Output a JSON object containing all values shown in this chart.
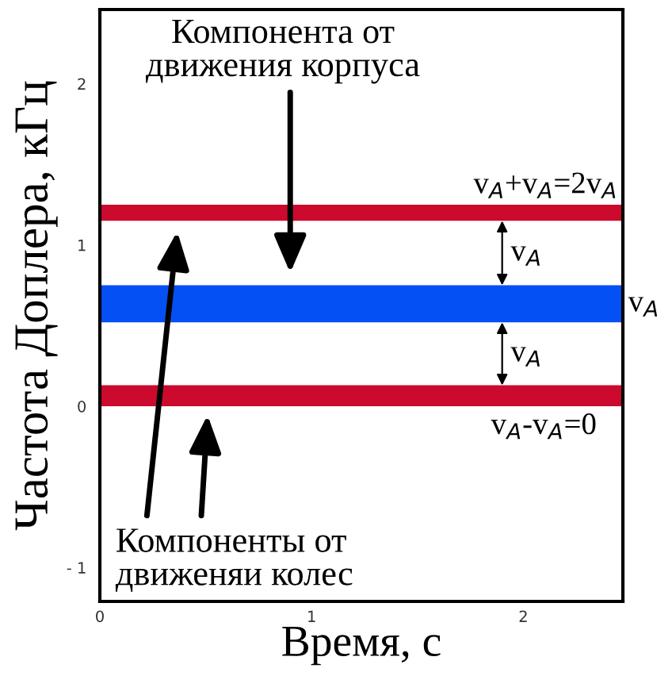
{
  "chart_data": {
    "type": "line",
    "xlabel": "Время, с",
    "ylabel": "Частота Доплера, кГц",
    "xlim": [
      0,
      2.47
    ],
    "ylim": [
      -1.21,
      2.46
    ],
    "xticks": [
      0,
      1,
      2
    ],
    "yticks": [
      {
        "value": -1,
        "label": "- 1"
      },
      0,
      1,
      2
    ],
    "grid": false,
    "bands": [
      {
        "axis": "y",
        "from": 1.15,
        "to": 1.25,
        "color": "#cc0a2e",
        "label": "v$_{A}$+v$_{A}$=2v$_{A}$"
      },
      {
        "axis": "y",
        "from": 0.52,
        "to": 0.75,
        "color": "#0450f5",
        "label": "v$_{A}$"
      },
      {
        "axis": "y",
        "from": 0.0,
        "to": 0.13,
        "color": "#cc0a2e",
        "label": "v$_{A}$-v$_{A}$=0"
      }
    ],
    "annotations": [
      "Компонента от\nдвижения корпуса",
      "Компоненты от\nдвиженяи колес",
      "v$_{A}$",
      "v$_{A}$"
    ]
  }
}
